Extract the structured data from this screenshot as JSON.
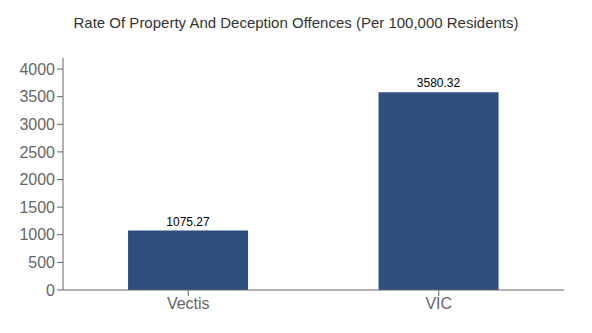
{
  "chart_data": {
    "type": "bar",
    "title": "Rate Of Property And Deception Offences (Per 100,000 Residents)",
    "categories": [
      "Vectis",
      "VIC"
    ],
    "values": [
      1075.27,
      3580.32
    ],
    "color": "#2e4f7c",
    "ylim": [
      0,
      4200
    ],
    "yticks": [
      0,
      500,
      1000,
      1500,
      2000,
      2500,
      3000,
      3500,
      4000
    ],
    "grid": false,
    "data_labels": true
  }
}
